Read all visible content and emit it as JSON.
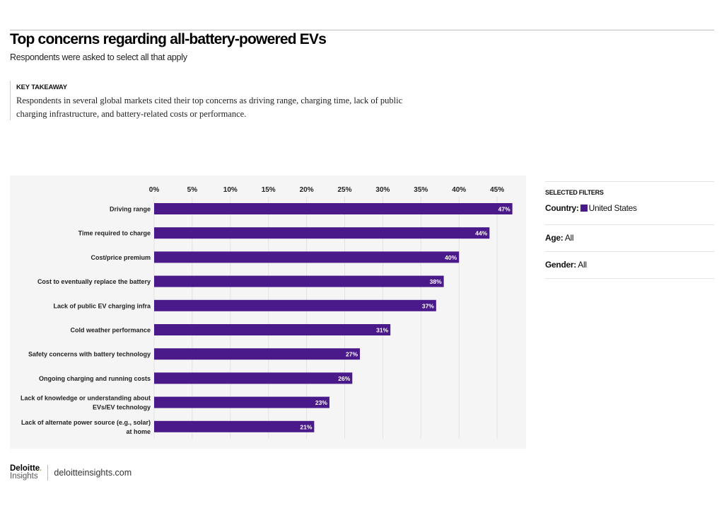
{
  "header": {
    "title": "Top concerns regarding all-battery-powered EVs",
    "subtitle": "Respondents were asked to select all that apply"
  },
  "takeaway": {
    "label": "KEY TAKEAWAY",
    "text": "Respondents in several global markets cited their top concerns as driving range, charging time, lack of public charging infrastructure, and battery-related costs or performance."
  },
  "filters": {
    "heading": "SELECTED FILTERS",
    "country_label": "Country:",
    "country_value": "United States",
    "country_color": "#4b1a8a",
    "age_label": "Age:",
    "age_value": "All",
    "gender_label": "Gender:",
    "gender_value": "All"
  },
  "footer": {
    "brand": "Deloitte",
    "brand_sub": "Insights",
    "site": "deloitteinsights.com"
  },
  "chart_data": {
    "type": "bar",
    "orientation": "horizontal",
    "categories": [
      [
        "Driving range"
      ],
      [
        "Time required to charge"
      ],
      [
        "Cost/price premium"
      ],
      [
        "Cost to eventually replace the battery"
      ],
      [
        "Lack of public EV charging infra"
      ],
      [
        "Cold weather performance"
      ],
      [
        "Safety concerns with battery technology"
      ],
      [
        "Ongoing charging and running costs"
      ],
      [
        "Lack of knowledge or understanding about",
        "EVs/EV technology"
      ],
      [
        "Lack of alternate power source (e.g., solar)",
        "at home"
      ]
    ],
    "values": [
      47,
      44,
      40,
      38,
      37,
      31,
      27,
      26,
      23,
      21
    ],
    "data_labels": [
      "47%",
      "44%",
      "40%",
      "38%",
      "37%",
      "31%",
      "27%",
      "26%",
      "23%",
      "21%"
    ],
    "xticks": [
      0,
      5,
      10,
      15,
      20,
      25,
      30,
      35,
      40,
      45
    ],
    "xtick_labels": [
      "0%",
      "5%",
      "10%",
      "15%",
      "20%",
      "25%",
      "30%",
      "35%",
      "40%",
      "45%"
    ],
    "xlim": [
      0,
      48
    ],
    "grid": true,
    "axis_position": "top",
    "bar_color": "#4b1a8a"
  }
}
